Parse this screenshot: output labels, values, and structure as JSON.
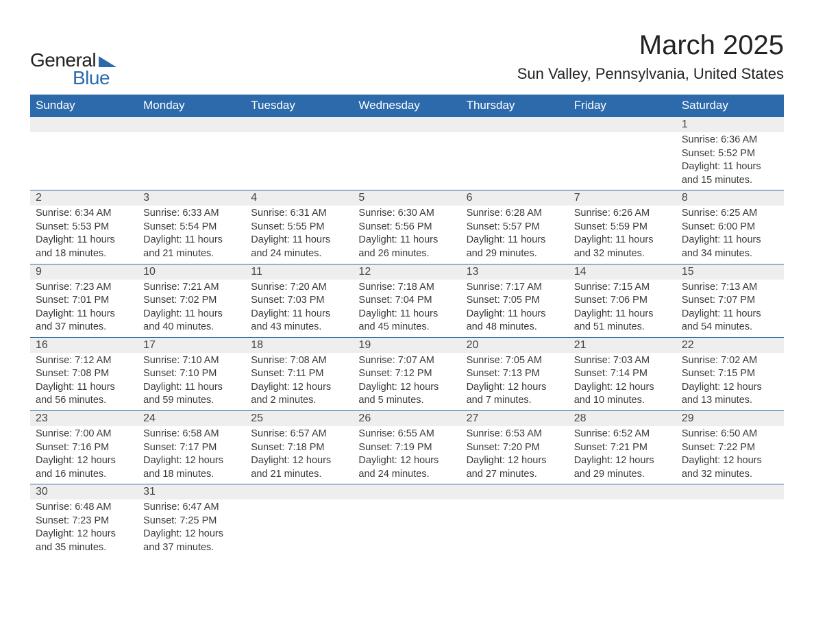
{
  "colors": {
    "header_bg": "#2d6aab",
    "header_text": "#ffffff",
    "daynum_bg": "#eeeeee",
    "text": "#3a3a3a",
    "row_border": "#2d6aab",
    "page_bg": "#ffffff"
  },
  "logo": {
    "line1": "General",
    "line2": "Blue"
  },
  "title": "March 2025",
  "location": "Sun Valley, Pennsylvania, United States",
  "days_of_week": [
    "Sunday",
    "Monday",
    "Tuesday",
    "Wednesday",
    "Thursday",
    "Friday",
    "Saturday"
  ],
  "weeks": [
    [
      {
        "n": "",
        "sr": "",
        "ss": "",
        "dl": ""
      },
      {
        "n": "",
        "sr": "",
        "ss": "",
        "dl": ""
      },
      {
        "n": "",
        "sr": "",
        "ss": "",
        "dl": ""
      },
      {
        "n": "",
        "sr": "",
        "ss": "",
        "dl": ""
      },
      {
        "n": "",
        "sr": "",
        "ss": "",
        "dl": ""
      },
      {
        "n": "",
        "sr": "",
        "ss": "",
        "dl": ""
      },
      {
        "n": "1",
        "sr": "Sunrise: 6:36 AM",
        "ss": "Sunset: 5:52 PM",
        "dl": "Daylight: 11 hours and 15 minutes."
      }
    ],
    [
      {
        "n": "2",
        "sr": "Sunrise: 6:34 AM",
        "ss": "Sunset: 5:53 PM",
        "dl": "Daylight: 11 hours and 18 minutes."
      },
      {
        "n": "3",
        "sr": "Sunrise: 6:33 AM",
        "ss": "Sunset: 5:54 PM",
        "dl": "Daylight: 11 hours and 21 minutes."
      },
      {
        "n": "4",
        "sr": "Sunrise: 6:31 AM",
        "ss": "Sunset: 5:55 PM",
        "dl": "Daylight: 11 hours and 24 minutes."
      },
      {
        "n": "5",
        "sr": "Sunrise: 6:30 AM",
        "ss": "Sunset: 5:56 PM",
        "dl": "Daylight: 11 hours and 26 minutes."
      },
      {
        "n": "6",
        "sr": "Sunrise: 6:28 AM",
        "ss": "Sunset: 5:57 PM",
        "dl": "Daylight: 11 hours and 29 minutes."
      },
      {
        "n": "7",
        "sr": "Sunrise: 6:26 AM",
        "ss": "Sunset: 5:59 PM",
        "dl": "Daylight: 11 hours and 32 minutes."
      },
      {
        "n": "8",
        "sr": "Sunrise: 6:25 AM",
        "ss": "Sunset: 6:00 PM",
        "dl": "Daylight: 11 hours and 34 minutes."
      }
    ],
    [
      {
        "n": "9",
        "sr": "Sunrise: 7:23 AM",
        "ss": "Sunset: 7:01 PM",
        "dl": "Daylight: 11 hours and 37 minutes."
      },
      {
        "n": "10",
        "sr": "Sunrise: 7:21 AM",
        "ss": "Sunset: 7:02 PM",
        "dl": "Daylight: 11 hours and 40 minutes."
      },
      {
        "n": "11",
        "sr": "Sunrise: 7:20 AM",
        "ss": "Sunset: 7:03 PM",
        "dl": "Daylight: 11 hours and 43 minutes."
      },
      {
        "n": "12",
        "sr": "Sunrise: 7:18 AM",
        "ss": "Sunset: 7:04 PM",
        "dl": "Daylight: 11 hours and 45 minutes."
      },
      {
        "n": "13",
        "sr": "Sunrise: 7:17 AM",
        "ss": "Sunset: 7:05 PM",
        "dl": "Daylight: 11 hours and 48 minutes."
      },
      {
        "n": "14",
        "sr": "Sunrise: 7:15 AM",
        "ss": "Sunset: 7:06 PM",
        "dl": "Daylight: 11 hours and 51 minutes."
      },
      {
        "n": "15",
        "sr": "Sunrise: 7:13 AM",
        "ss": "Sunset: 7:07 PM",
        "dl": "Daylight: 11 hours and 54 minutes."
      }
    ],
    [
      {
        "n": "16",
        "sr": "Sunrise: 7:12 AM",
        "ss": "Sunset: 7:08 PM",
        "dl": "Daylight: 11 hours and 56 minutes."
      },
      {
        "n": "17",
        "sr": "Sunrise: 7:10 AM",
        "ss": "Sunset: 7:10 PM",
        "dl": "Daylight: 11 hours and 59 minutes."
      },
      {
        "n": "18",
        "sr": "Sunrise: 7:08 AM",
        "ss": "Sunset: 7:11 PM",
        "dl": "Daylight: 12 hours and 2 minutes."
      },
      {
        "n": "19",
        "sr": "Sunrise: 7:07 AM",
        "ss": "Sunset: 7:12 PM",
        "dl": "Daylight: 12 hours and 5 minutes."
      },
      {
        "n": "20",
        "sr": "Sunrise: 7:05 AM",
        "ss": "Sunset: 7:13 PM",
        "dl": "Daylight: 12 hours and 7 minutes."
      },
      {
        "n": "21",
        "sr": "Sunrise: 7:03 AM",
        "ss": "Sunset: 7:14 PM",
        "dl": "Daylight: 12 hours and 10 minutes."
      },
      {
        "n": "22",
        "sr": "Sunrise: 7:02 AM",
        "ss": "Sunset: 7:15 PM",
        "dl": "Daylight: 12 hours and 13 minutes."
      }
    ],
    [
      {
        "n": "23",
        "sr": "Sunrise: 7:00 AM",
        "ss": "Sunset: 7:16 PM",
        "dl": "Daylight: 12 hours and 16 minutes."
      },
      {
        "n": "24",
        "sr": "Sunrise: 6:58 AM",
        "ss": "Sunset: 7:17 PM",
        "dl": "Daylight: 12 hours and 18 minutes."
      },
      {
        "n": "25",
        "sr": "Sunrise: 6:57 AM",
        "ss": "Sunset: 7:18 PM",
        "dl": "Daylight: 12 hours and 21 minutes."
      },
      {
        "n": "26",
        "sr": "Sunrise: 6:55 AM",
        "ss": "Sunset: 7:19 PM",
        "dl": "Daylight: 12 hours and 24 minutes."
      },
      {
        "n": "27",
        "sr": "Sunrise: 6:53 AM",
        "ss": "Sunset: 7:20 PM",
        "dl": "Daylight: 12 hours and 27 minutes."
      },
      {
        "n": "28",
        "sr": "Sunrise: 6:52 AM",
        "ss": "Sunset: 7:21 PM",
        "dl": "Daylight: 12 hours and 29 minutes."
      },
      {
        "n": "29",
        "sr": "Sunrise: 6:50 AM",
        "ss": "Sunset: 7:22 PM",
        "dl": "Daylight: 12 hours and 32 minutes."
      }
    ],
    [
      {
        "n": "30",
        "sr": "Sunrise: 6:48 AM",
        "ss": "Sunset: 7:23 PM",
        "dl": "Daylight: 12 hours and 35 minutes."
      },
      {
        "n": "31",
        "sr": "Sunrise: 6:47 AM",
        "ss": "Sunset: 7:25 PM",
        "dl": "Daylight: 12 hours and 37 minutes."
      },
      {
        "n": "",
        "sr": "",
        "ss": "",
        "dl": ""
      },
      {
        "n": "",
        "sr": "",
        "ss": "",
        "dl": ""
      },
      {
        "n": "",
        "sr": "",
        "ss": "",
        "dl": ""
      },
      {
        "n": "",
        "sr": "",
        "ss": "",
        "dl": ""
      },
      {
        "n": "",
        "sr": "",
        "ss": "",
        "dl": ""
      }
    ]
  ]
}
